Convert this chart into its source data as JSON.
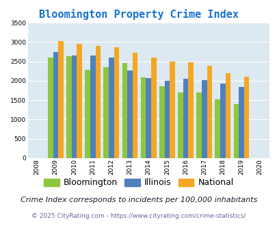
{
  "title": "Bloomington Property Crime Index",
  "years": [
    2009,
    2010,
    2011,
    2012,
    2013,
    2014,
    2015,
    2016,
    2017,
    2018,
    2019
  ],
  "bloomington": [
    2600,
    2640,
    2280,
    2350,
    2450,
    2090,
    1850,
    1700,
    1700,
    1520,
    1390
  ],
  "illinois": [
    2740,
    2660,
    2660,
    2590,
    2270,
    2060,
    1990,
    2050,
    2010,
    1930,
    1840
  ],
  "national": [
    3030,
    2950,
    2900,
    2860,
    2720,
    2590,
    2500,
    2470,
    2380,
    2200,
    2110
  ],
  "bloomington_color": "#8dc63f",
  "illinois_color": "#4f81bd",
  "national_color": "#f5a623",
  "bg_color": "#dce9f0",
  "ylim": [
    0,
    3500
  ],
  "yticks": [
    0,
    500,
    1000,
    1500,
    2000,
    2500,
    3000,
    3500
  ],
  "legend_labels": [
    "Bloomington",
    "Illinois",
    "National"
  ],
  "subtitle": "Crime Index corresponds to incidents per 100,000 inhabitants",
  "footer": "© 2025 CityRating.com - https://www.cityrating.com/crime-statistics/",
  "title_color": "#1874cd",
  "subtitle_color": "#1a1a2e",
  "footer_color": "#666699",
  "title_fontsize": 11,
  "legend_fontsize": 9,
  "subtitle_fontsize": 8,
  "footer_fontsize": 6.5
}
